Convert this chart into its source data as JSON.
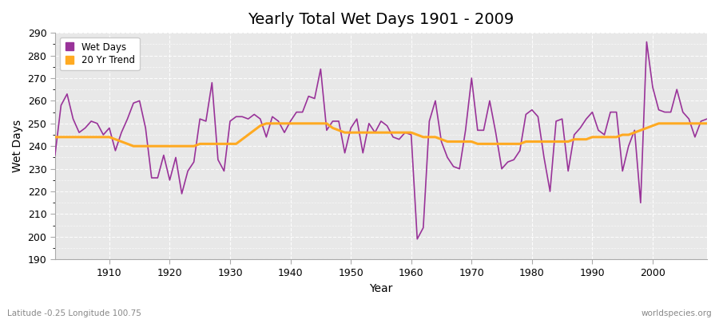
{
  "title": "Yearly Total Wet Days 1901 - 2009",
  "xlabel": "Year",
  "ylabel": "Wet Days",
  "ylim": [
    190,
    290
  ],
  "xlim": [
    1901,
    2009
  ],
  "yticks": [
    190,
    200,
    210,
    220,
    230,
    240,
    250,
    260,
    270,
    280,
    290
  ],
  "xticks": [
    1910,
    1920,
    1930,
    1940,
    1950,
    1960,
    1970,
    1980,
    1990,
    2000
  ],
  "fig_bg_color": "#ffffff",
  "plot_bg_color": "#e8e8e8",
  "wet_days_color": "#993399",
  "trend_color": "#ffaa22",
  "wet_days_label": "Wet Days",
  "trend_label": "20 Yr Trend",
  "footnote_left": "Latitude -0.25 Longitude 100.75",
  "footnote_right": "worldspecies.org",
  "years": [
    1901,
    1902,
    1903,
    1904,
    1905,
    1906,
    1907,
    1908,
    1909,
    1910,
    1911,
    1912,
    1913,
    1914,
    1915,
    1916,
    1917,
    1918,
    1919,
    1920,
    1921,
    1922,
    1923,
    1924,
    1925,
    1926,
    1927,
    1928,
    1929,
    1930,
    1931,
    1932,
    1933,
    1934,
    1935,
    1936,
    1937,
    1938,
    1939,
    1940,
    1941,
    1942,
    1943,
    1944,
    1945,
    1946,
    1947,
    1948,
    1949,
    1950,
    1951,
    1952,
    1953,
    1954,
    1955,
    1956,
    1957,
    1958,
    1959,
    1960,
    1961,
    1962,
    1963,
    1964,
    1965,
    1966,
    1967,
    1968,
    1969,
    1970,
    1971,
    1972,
    1973,
    1974,
    1975,
    1976,
    1977,
    1978,
    1979,
    1980,
    1981,
    1982,
    1983,
    1984,
    1985,
    1986,
    1987,
    1988,
    1989,
    1990,
    1991,
    1992,
    1993,
    1994,
    1995,
    1996,
    1997,
    1998,
    1999,
    2000,
    2001,
    2002,
    2003,
    2004,
    2005,
    2006,
    2007,
    2008,
    2009
  ],
  "wet_days": [
    236,
    258,
    263,
    252,
    246,
    248,
    251,
    250,
    245,
    248,
    238,
    246,
    252,
    259,
    260,
    248,
    226,
    226,
    236,
    225,
    235,
    219,
    229,
    233,
    252,
    251,
    268,
    234,
    229,
    251,
    253,
    253,
    252,
    254,
    252,
    244,
    253,
    251,
    246,
    251,
    255,
    255,
    262,
    261,
    274,
    247,
    251,
    251,
    237,
    248,
    252,
    237,
    250,
    246,
    251,
    249,
    244,
    243,
    246,
    245,
    199,
    204,
    251,
    260,
    242,
    235,
    231,
    230,
    247,
    270,
    247,
    247,
    260,
    246,
    230,
    233,
    234,
    238,
    254,
    256,
    253,
    235,
    220,
    251,
    252,
    229,
    245,
    248,
    252,
    255,
    247,
    245,
    255,
    255,
    229,
    240,
    247,
    215,
    286,
    266,
    256,
    255,
    255,
    265,
    255,
    252,
    244,
    251,
    252
  ],
  "trend": [
    244,
    244,
    244,
    244,
    244,
    244,
    244,
    244,
    244,
    244,
    243,
    242,
    241,
    240,
    240,
    240,
    240,
    240,
    240,
    240,
    240,
    240,
    240,
    240,
    241,
    241,
    241,
    241,
    241,
    241,
    241,
    243,
    245,
    247,
    249,
    250,
    250,
    250,
    250,
    250,
    250,
    250,
    250,
    250,
    250,
    250,
    248,
    247,
    246,
    246,
    246,
    246,
    246,
    246,
    246,
    246,
    246,
    246,
    246,
    246,
    245,
    244,
    244,
    244,
    243,
    242,
    242,
    242,
    242,
    242,
    241,
    241,
    241,
    241,
    241,
    241,
    241,
    241,
    242,
    242,
    242,
    242,
    242,
    242,
    242,
    242,
    243,
    243,
    243,
    244,
    244,
    244,
    244,
    244,
    245,
    245,
    246,
    247,
    248,
    249,
    250,
    250,
    250,
    250,
    250,
    250,
    250,
    250,
    250
  ]
}
